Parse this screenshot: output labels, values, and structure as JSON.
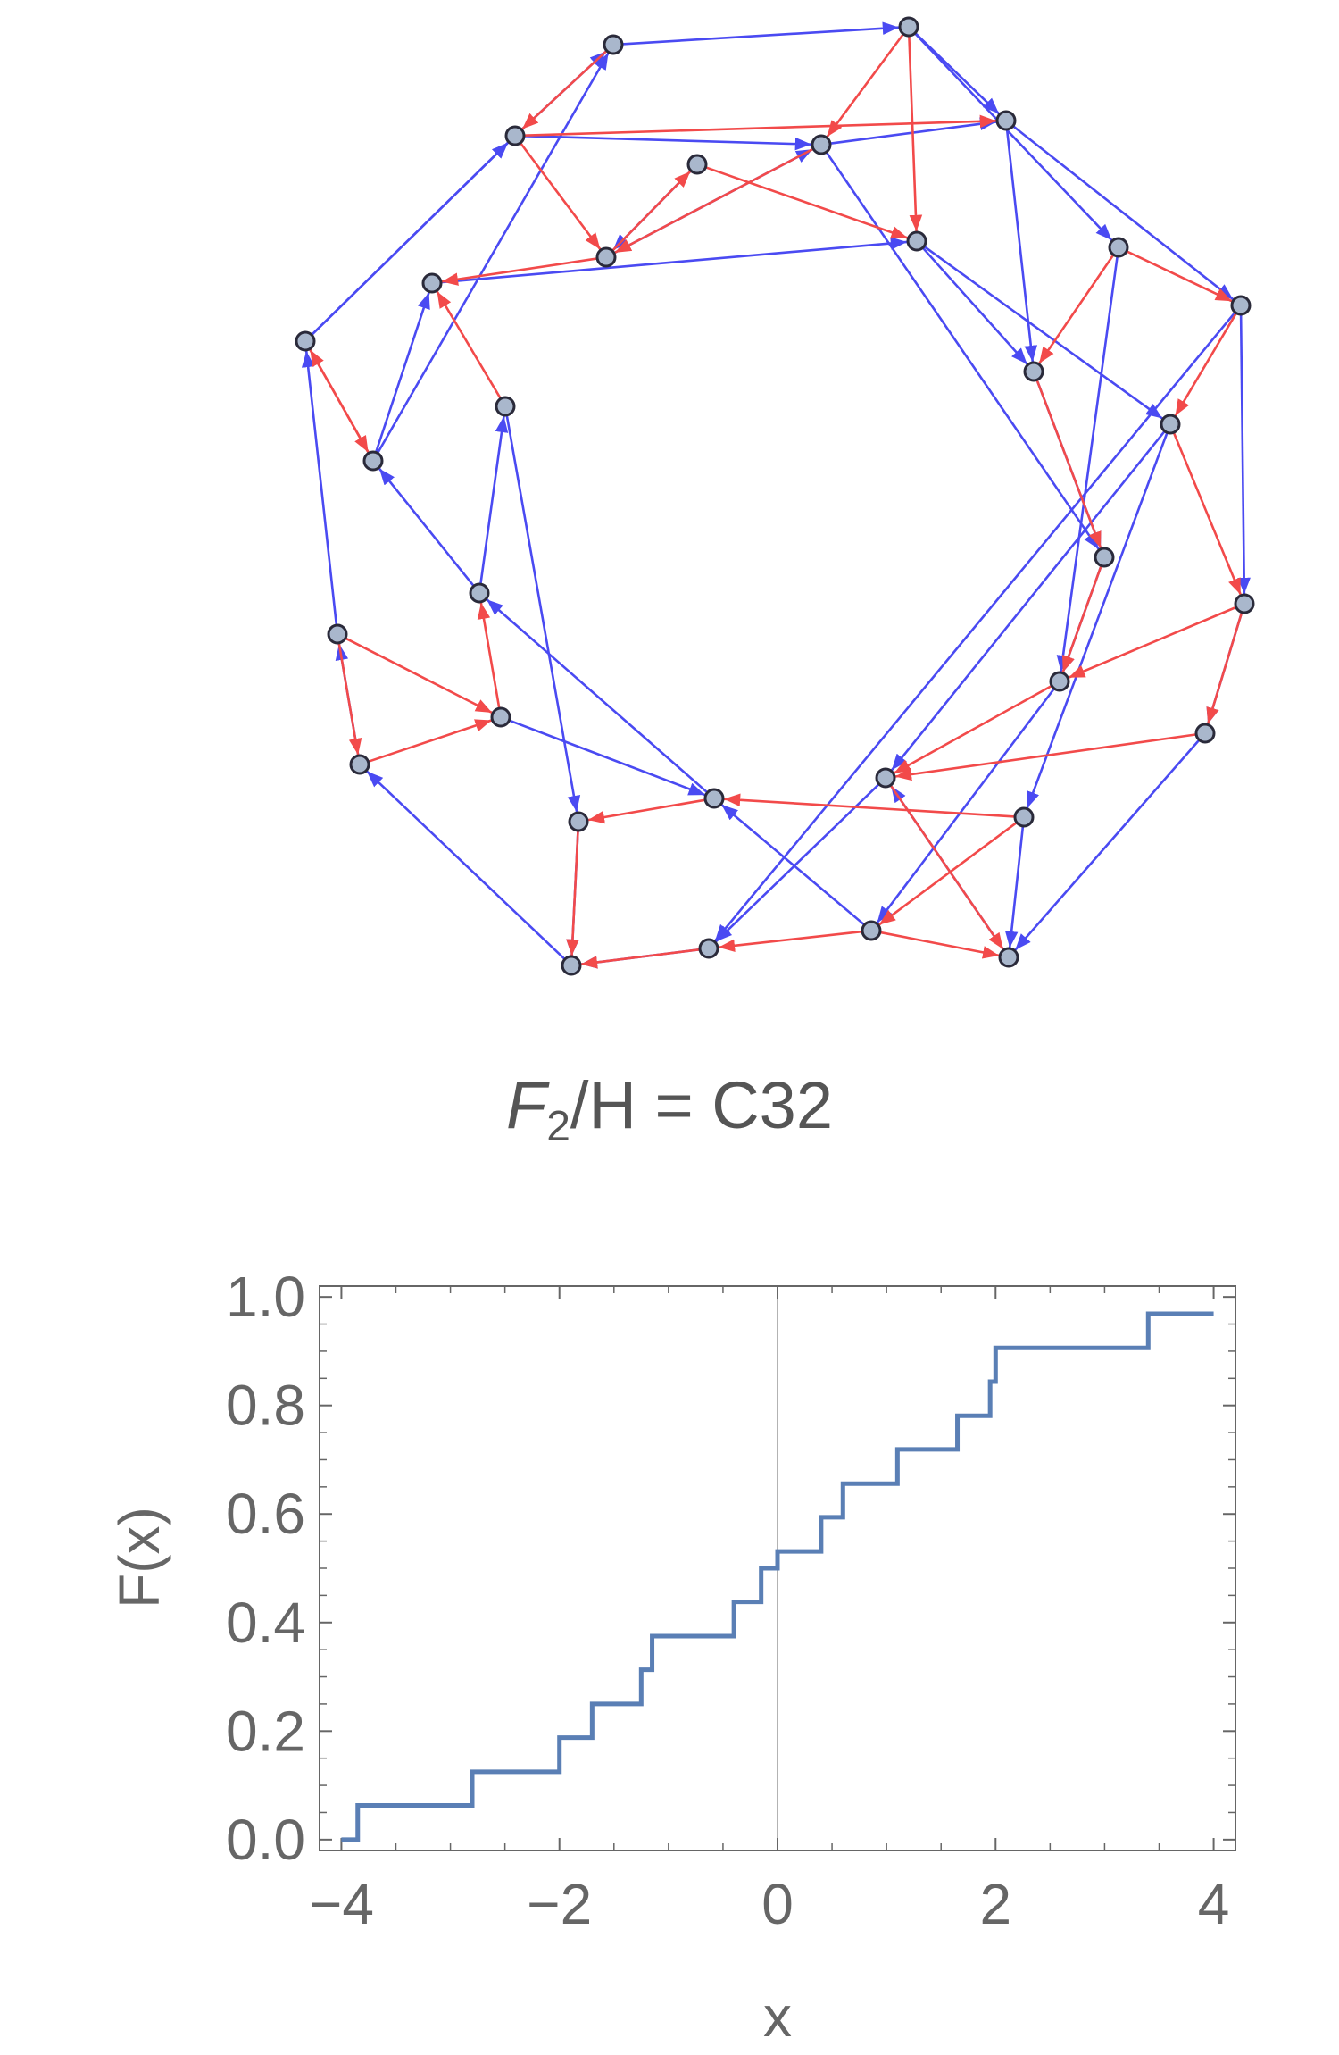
{
  "figure": {
    "caption_prefix": "F",
    "caption_sub": "2",
    "caption_suffix": "/H = C32"
  },
  "colors": {
    "blue_edge": "#4a4af2",
    "red_edge": "#f24a4a",
    "node_fill": "#a9b7cc",
    "node_stroke": "#2a2a3a",
    "step_line": "#5a7fb5",
    "axis": "#666666"
  },
  "chart_data": {
    "type": "line",
    "style": "step",
    "xlabel": "x",
    "ylabel": "F(x)",
    "xlim": [
      -4.2,
      4.2
    ],
    "ylim": [
      -0.02,
      1.02
    ],
    "x_ticks": [
      -4,
      -2,
      0,
      2,
      4
    ],
    "x_tick_labels": [
      "−4",
      "−2",
      "0",
      "2",
      "4"
    ],
    "y_ticks": [
      0.0,
      0.2,
      0.4,
      0.6,
      0.8,
      1.0
    ],
    "y_tick_labels": [
      "0.0",
      "0.2",
      "0.4",
      "0.6",
      "0.8",
      "1.0"
    ],
    "grid": false,
    "steps": [
      {
        "x": -4.0,
        "y": 0.0
      },
      {
        "x": -3.85,
        "y": 0.063
      },
      {
        "x": -2.8,
        "y": 0.125
      },
      {
        "x": -2.0,
        "y": 0.188
      },
      {
        "x": -1.7,
        "y": 0.25
      },
      {
        "x": -1.25,
        "y": 0.313
      },
      {
        "x": -1.15,
        "y": 0.375
      },
      {
        "x": -0.4,
        "y": 0.438
      },
      {
        "x": -0.15,
        "y": 0.5
      },
      {
        "x": 0.0,
        "y": 0.531
      },
      {
        "x": 0.4,
        "y": 0.594
      },
      {
        "x": 0.6,
        "y": 0.656
      },
      {
        "x": 1.1,
        "y": 0.719
      },
      {
        "x": 1.65,
        "y": 0.781
      },
      {
        "x": 1.95,
        "y": 0.844
      },
      {
        "x": 2.0,
        "y": 0.906
      },
      {
        "x": 3.4,
        "y": 0.969
      },
      {
        "x": 4.0,
        "y": 0.969
      }
    ]
  }
}
